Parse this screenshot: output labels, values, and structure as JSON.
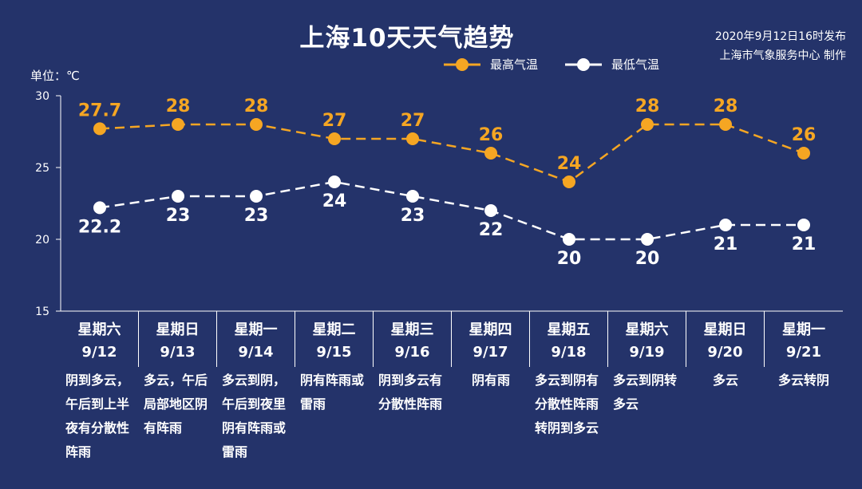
{
  "title": "上海10天天气趋势",
  "issued": {
    "line1": "2020年9月12日16时发布",
    "line2": "上海市气象服务中心 制作"
  },
  "unit_label": "单位：℃",
  "colors": {
    "background": "#24336a",
    "high": "#f5a623",
    "low": "#ffffff"
  },
  "chart_data": {
    "type": "line",
    "categories": [
      "9/12",
      "9/13",
      "9/14",
      "9/15",
      "9/16",
      "9/17",
      "9/18",
      "9/19",
      "9/20",
      "9/21"
    ],
    "ylim": [
      15,
      30
    ],
    "yticks": [
      15,
      20,
      25,
      30
    ],
    "grid": false,
    "legend": "top-center",
    "series": [
      {
        "name": "最高气温",
        "values": [
          27.7,
          28,
          28,
          27,
          27,
          26,
          24,
          28,
          28,
          26
        ],
        "labels": [
          "27.7",
          "28",
          "28",
          "27",
          "27",
          "26",
          "24",
          "28",
          "28",
          "26"
        ],
        "color": "#f5a623",
        "label_position": "above"
      },
      {
        "name": "最低气温",
        "values": [
          22.2,
          23,
          23,
          24,
          23,
          22,
          20,
          20,
          21,
          21
        ],
        "labels": [
          "22.2",
          "23",
          "23",
          "24",
          "23",
          "22",
          "20",
          "20",
          "21",
          "21"
        ],
        "color": "#ffffff",
        "label_position": "below"
      }
    ]
  },
  "days": [
    {
      "weekday": "星期六",
      "date": "9/12",
      "desc": "阴到多云，午后到上半夜有分散性阵雨"
    },
    {
      "weekday": "星期日",
      "date": "9/13",
      "desc": "多云，午后局部地区阴有阵雨"
    },
    {
      "weekday": "星期一",
      "date": "9/14",
      "desc": "多云到阴，午后到夜里阴有阵雨或雷雨"
    },
    {
      "weekday": "星期二",
      "date": "9/15",
      "desc": "阴有阵雨或雷雨"
    },
    {
      "weekday": "星期三",
      "date": "9/16",
      "desc": "阴到多云有分散性阵雨"
    },
    {
      "weekday": "星期四",
      "date": "9/17",
      "desc": "阴有雨"
    },
    {
      "weekday": "星期五",
      "date": "9/18",
      "desc": "多云到阴有分散性阵雨转阴到多云"
    },
    {
      "weekday": "星期六",
      "date": "9/19",
      "desc": "多云到阴转多云"
    },
    {
      "weekday": "星期日",
      "date": "9/20",
      "desc": "多云"
    },
    {
      "weekday": "星期一",
      "date": "9/21",
      "desc": "多云转阴"
    }
  ]
}
